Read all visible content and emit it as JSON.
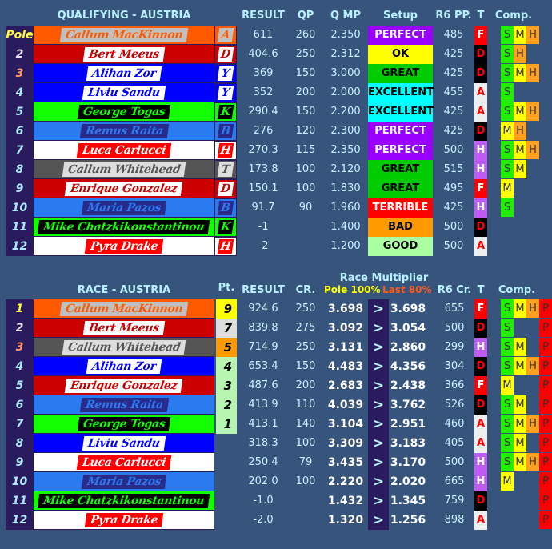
{
  "colors": {
    "background": "#36547c",
    "position_column": "#2a1a5e",
    "header_text": "#b8f0ff"
  },
  "teams": {
    "A": {
      "band": "#ff5a00",
      "label_bg": "#c0c0c0",
      "label_fg": "#ff5a00"
    },
    "D": {
      "band": "#cc0000",
      "label_bg": "#ffffff",
      "label_fg": "#cc0000"
    },
    "Y": {
      "band": "#0000ff",
      "label_bg": "#ffffff",
      "label_fg": "#0000ff"
    },
    "K": {
      "band": "#11ff00",
      "label_bg": "#000000",
      "label_fg": "#11ff00"
    },
    "B": {
      "band": "#2a7af0",
      "label_bg": "#2a2a8a",
      "label_fg": "#2a7af0"
    },
    "H": {
      "band": "#ffffff",
      "label_bg": "#ff0000",
      "label_fg": "#ffffff"
    },
    "T": {
      "band": "#555555",
      "label_bg": "#dddddd",
      "label_fg": "#555555"
    }
  },
  "setup_colors": {
    "PERFECT": [
      "#9900ff",
      "#ffffff"
    ],
    "OK": [
      "#ffff00",
      "#000000"
    ],
    "GREAT": [
      "#00cc00",
      "#000000"
    ],
    "EXCELLENT": [
      "#00ffff",
      "#000000"
    ],
    "TERRIBLE": [
      "#ff0000",
      "#ffffff"
    ],
    "BAD": [
      "#ff9900",
      "#000000"
    ],
    "GOOD": [
      "#aaffa0",
      "#000000"
    ]
  },
  "tyre_colors": {
    "F": [
      "#ff0000",
      "#ffffff"
    ],
    "D": [
      "#000000",
      "#ff0000"
    ],
    "A": [
      "#eeeeee",
      "#ff0000"
    ],
    "H": [
      "#bf5af2",
      "#ffffff"
    ]
  },
  "compound_colors": {
    "S": "#22ee00",
    "M": "#ffff00",
    "H": "#ffa020",
    "P": "#ff0000"
  },
  "position_colors": {
    "1": "#ffff33",
    "2": "#e0e0f0",
    "3": "#ff9966",
    "other": "#b0e8ff"
  },
  "points_colors": {
    "9": "#ffff00",
    "7": "#dddddd",
    "5": "#ff9900",
    "other": "#b8f5b0"
  },
  "qualifying": {
    "title": "QUALIFYING - AUSTRIA",
    "headers": {
      "result": "RESULT",
      "qp": "QP",
      "qmp": "Q MP",
      "setup": "Setup",
      "r6pp": "R6 PP.",
      "t": "T",
      "comp": "Comp."
    },
    "rows": [
      {
        "pos": "Pole",
        "driver": "Callum MacKinnon",
        "team": "A",
        "result": "611",
        "qp": "260",
        "qmp": "2.350",
        "setup": "PERFECT",
        "r6pp": "485",
        "t": "F",
        "comp": [
          "S",
          "M",
          "H"
        ]
      },
      {
        "pos": "2",
        "driver": "Bert Meeus",
        "team": "D",
        "result": "404.6",
        "qp": "250",
        "qmp": "2.312",
        "setup": "OK",
        "r6pp": "425",
        "t": "D",
        "comp": [
          "S",
          "H"
        ]
      },
      {
        "pos": "3",
        "driver": "Alihan Zor",
        "team": "Y",
        "result": "369",
        "qp": "150",
        "qmp": "3.000",
        "setup": "GREAT",
        "r6pp": "425",
        "t": "D",
        "comp": [
          "S",
          "M",
          "H"
        ]
      },
      {
        "pos": "4",
        "driver": "Liviu Sandu",
        "team": "Y",
        "result": "352",
        "qp": "200",
        "qmp": "2.000",
        "setup": "EXCELLENT",
        "r6pp": "455",
        "t": "A",
        "comp": [
          "S"
        ]
      },
      {
        "pos": "5",
        "driver": "George Togas",
        "team": "K",
        "result": "290.4",
        "qp": "150",
        "qmp": "2.200",
        "setup": "EXCELLENT",
        "r6pp": "425",
        "t": "A",
        "comp": [
          "S",
          "M",
          "H"
        ]
      },
      {
        "pos": "6",
        "driver": "Remus Raita",
        "team": "B",
        "result": "276",
        "qp": "120",
        "qmp": "2.300",
        "setup": "PERFECT",
        "r6pp": "425",
        "t": "D",
        "comp": [
          "M",
          "H"
        ]
      },
      {
        "pos": "7",
        "driver": "Luca Carlucci",
        "team": "H",
        "result": "270.3",
        "qp": "115",
        "qmp": "2.350",
        "setup": "PERFECT",
        "r6pp": "500",
        "t": "H",
        "comp": [
          "S",
          "M",
          "H"
        ]
      },
      {
        "pos": "8",
        "driver": "Callum Whitehead",
        "team": "T",
        "result": "173.8",
        "qp": "100",
        "qmp": "2.120",
        "setup": "GREAT",
        "r6pp": "515",
        "t": "H",
        "comp": [
          "S",
          "M"
        ]
      },
      {
        "pos": "9",
        "driver": "Enrique Gonzalez",
        "team": "D",
        "result": "150.1",
        "qp": "100",
        "qmp": "1.830",
        "setup": "GREAT",
        "r6pp": "495",
        "t": "F",
        "comp": [
          "M"
        ]
      },
      {
        "pos": "10",
        "driver": "Maria Pazos",
        "team": "B",
        "result": "91.7",
        "qp": "90",
        "qmp": "1.960",
        "setup": "TERRIBLE",
        "r6pp": "425",
        "t": "H",
        "comp": [
          "S"
        ]
      },
      {
        "pos": "11",
        "driver": "Mike Chatzkikonstantinou",
        "team": "K",
        "result": "-1",
        "qp": "",
        "qmp": "1.400",
        "setup": "BAD",
        "r6pp": "500",
        "t": "D",
        "comp": []
      },
      {
        "pos": "12",
        "driver": "Pyra Drake",
        "team": "H",
        "result": "-2",
        "qp": "",
        "qmp": "1.200",
        "setup": "GOOD",
        "r6pp": "500",
        "t": "A",
        "comp": []
      }
    ]
  },
  "race": {
    "title": "RACE - AUSTRIA",
    "headers": {
      "pt": "Pt.",
      "result": "RESULT",
      "cr": "CR.",
      "multiplier": "Race Multiplier",
      "pole": "Pole 100%",
      "last": "Last 80%",
      "r6cr": "R6 Cr.",
      "t": "T",
      "comp": "Comp."
    },
    "arrow": ">",
    "rows": [
      {
        "pos": "1",
        "driver": "Callum MacKinnon",
        "team": "A",
        "pt": "9",
        "result": "924.6",
        "cr": "250",
        "mult": "3.698",
        "adj": "3.698",
        "r6cr": "655",
        "t": "F",
        "comp": [
          "S",
          "M",
          "H"
        ],
        "p": "P"
      },
      {
        "pos": "2",
        "driver": "Bert Meeus",
        "team": "D",
        "pt": "7",
        "result": "839.8",
        "cr": "275",
        "mult": "3.092",
        "adj": "3.054",
        "r6cr": "500",
        "t": "D",
        "comp": [
          "S"
        ],
        "p": "P"
      },
      {
        "pos": "3",
        "driver": "Callum Whitehead",
        "team": "T",
        "pt": "5",
        "result": "714.9",
        "cr": "250",
        "mult": "3.131",
        "adj": "2.860",
        "r6cr": "299",
        "t": "H",
        "comp": [
          "S",
          "M"
        ],
        "p": "P"
      },
      {
        "pos": "4",
        "driver": "Alihan Zor",
        "team": "Y",
        "pt": "4",
        "result": "653.4",
        "cr": "150",
        "mult": "4.483",
        "adj": "4.356",
        "r6cr": "304",
        "t": "D",
        "comp": [
          "S",
          "M",
          "H"
        ],
        "p": "P"
      },
      {
        "pos": "5",
        "driver": "Enrique Gonzalez",
        "team": "D",
        "pt": "3",
        "result": "487.6",
        "cr": "200",
        "mult": "2.683",
        "adj": "2.438",
        "r6cr": "366",
        "t": "F",
        "comp": [
          "M"
        ],
        "p": "P"
      },
      {
        "pos": "6",
        "driver": "Remus Raita",
        "team": "B",
        "pt": "2",
        "result": "413.9",
        "cr": "110",
        "mult": "4.039",
        "adj": "3.762",
        "r6cr": "526",
        "t": "D",
        "comp": [
          "S",
          "M"
        ],
        "p": "P"
      },
      {
        "pos": "7",
        "driver": "George Togas",
        "team": "K",
        "pt": "1",
        "result": "413.1",
        "cr": "140",
        "mult": "3.104",
        "adj": "2.951",
        "r6cr": "460",
        "t": "A",
        "comp": [
          "S",
          "M",
          "H"
        ],
        "p": "P"
      },
      {
        "pos": "8",
        "driver": "Liviu Sandu",
        "team": "Y",
        "pt": "",
        "result": "318.3",
        "cr": "100",
        "mult": "3.309",
        "adj": "3.183",
        "r6cr": "405",
        "t": "A",
        "comp": [
          "S",
          "M"
        ],
        "p": "P"
      },
      {
        "pos": "9",
        "driver": "Luca Carlucci",
        "team": "H",
        "pt": "",
        "result": "250.4",
        "cr": "79",
        "mult": "3.435",
        "adj": "3.170",
        "r6cr": "500",
        "t": "H",
        "comp": [
          "S",
          "M",
          "H"
        ],
        "p": "P"
      },
      {
        "pos": "10",
        "driver": "Maria Pazos",
        "team": "B",
        "pt": "",
        "result": "202.0",
        "cr": "100",
        "mult": "2.220",
        "adj": "2.020",
        "r6cr": "665",
        "t": "H",
        "comp": [
          "M"
        ],
        "p": "P"
      },
      {
        "pos": "11",
        "driver": "Mike Chatzkikonstantinou",
        "team": "K",
        "pt": "",
        "result": "-1.0",
        "cr": "",
        "mult": "1.432",
        "adj": "1.345",
        "r6cr": "759",
        "t": "D",
        "comp": [],
        "p": "P"
      },
      {
        "pos": "12",
        "driver": "Pyra Drake",
        "team": "H",
        "pt": "",
        "result": "-2.0",
        "cr": "",
        "mult": "1.320",
        "adj": "1.256",
        "r6cr": "898",
        "t": "A",
        "comp": [],
        "p": "P"
      }
    ]
  }
}
